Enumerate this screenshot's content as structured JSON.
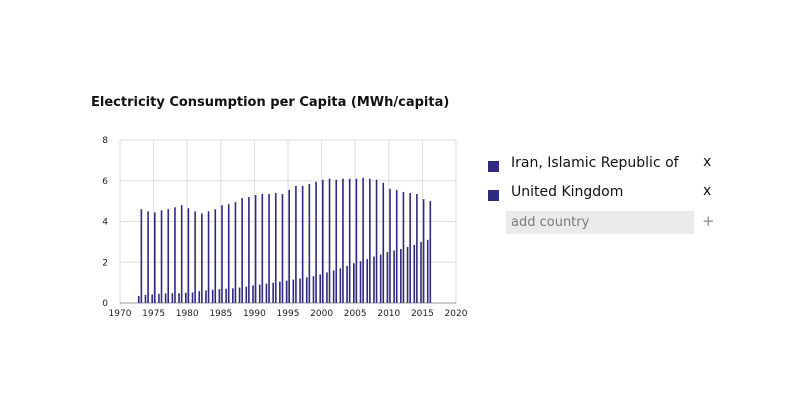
{
  "chart_data": {
    "type": "bar",
    "title": "Electricity Consumption per Capita (MWh/capita)",
    "xlabel": "",
    "ylabel": "",
    "xlim": [
      1970,
      2020
    ],
    "ylim": [
      0,
      8
    ],
    "x_ticks": [
      1970,
      1975,
      1980,
      1985,
      1990,
      1995,
      2000,
      2005,
      2010,
      2015,
      2020
    ],
    "y_ticks": [
      0,
      2,
      4,
      6,
      8
    ],
    "grid": true,
    "x": [
      1973,
      1974,
      1975,
      1976,
      1977,
      1978,
      1979,
      1980,
      1981,
      1982,
      1983,
      1984,
      1985,
      1986,
      1987,
      1988,
      1989,
      1990,
      1991,
      1992,
      1993,
      1994,
      1995,
      1996,
      1997,
      1998,
      1999,
      2000,
      2001,
      2002,
      2003,
      2004,
      2005,
      2006,
      2007,
      2008,
      2009,
      2010,
      2011,
      2012,
      2013,
      2014,
      2015,
      2016
    ],
    "series": [
      {
        "name": "Iran, Islamic Republic of",
        "color": "#2e2a7f",
        "values": [
          0.35,
          0.4,
          0.42,
          0.45,
          0.47,
          0.48,
          0.48,
          0.5,
          0.52,
          0.58,
          0.62,
          0.65,
          0.68,
          0.7,
          0.72,
          0.76,
          0.8,
          0.86,
          0.9,
          0.95,
          1.0,
          1.05,
          1.1,
          1.15,
          1.2,
          1.26,
          1.32,
          1.4,
          1.5,
          1.6,
          1.7,
          1.82,
          1.95,
          2.05,
          2.15,
          2.28,
          2.38,
          2.5,
          2.58,
          2.65,
          2.75,
          2.85,
          3.0,
          3.1
        ]
      },
      {
        "name": "United Kingdom",
        "color": "#2e2a7f",
        "values": [
          4.6,
          4.5,
          4.45,
          4.55,
          4.6,
          4.7,
          4.8,
          4.65,
          4.5,
          4.4,
          4.5,
          4.6,
          4.8,
          4.85,
          4.95,
          5.15,
          5.2,
          5.3,
          5.35,
          5.35,
          5.4,
          5.35,
          5.55,
          5.75,
          5.75,
          5.85,
          5.95,
          6.05,
          6.1,
          6.05,
          6.1,
          6.1,
          6.1,
          6.15,
          6.1,
          6.05,
          5.9,
          5.6,
          5.55,
          5.45,
          5.4,
          5.35,
          5.1,
          5.0
        ]
      }
    ]
  },
  "legend": {
    "items": [
      {
        "label": "Iran, Islamic Republic of",
        "remove": "x",
        "color": "#2e2a7f"
      },
      {
        "label": "United Kingdom",
        "remove": "x",
        "color": "#2e2a7f"
      }
    ],
    "add_placeholder": "add country",
    "add_symbol": "+"
  }
}
